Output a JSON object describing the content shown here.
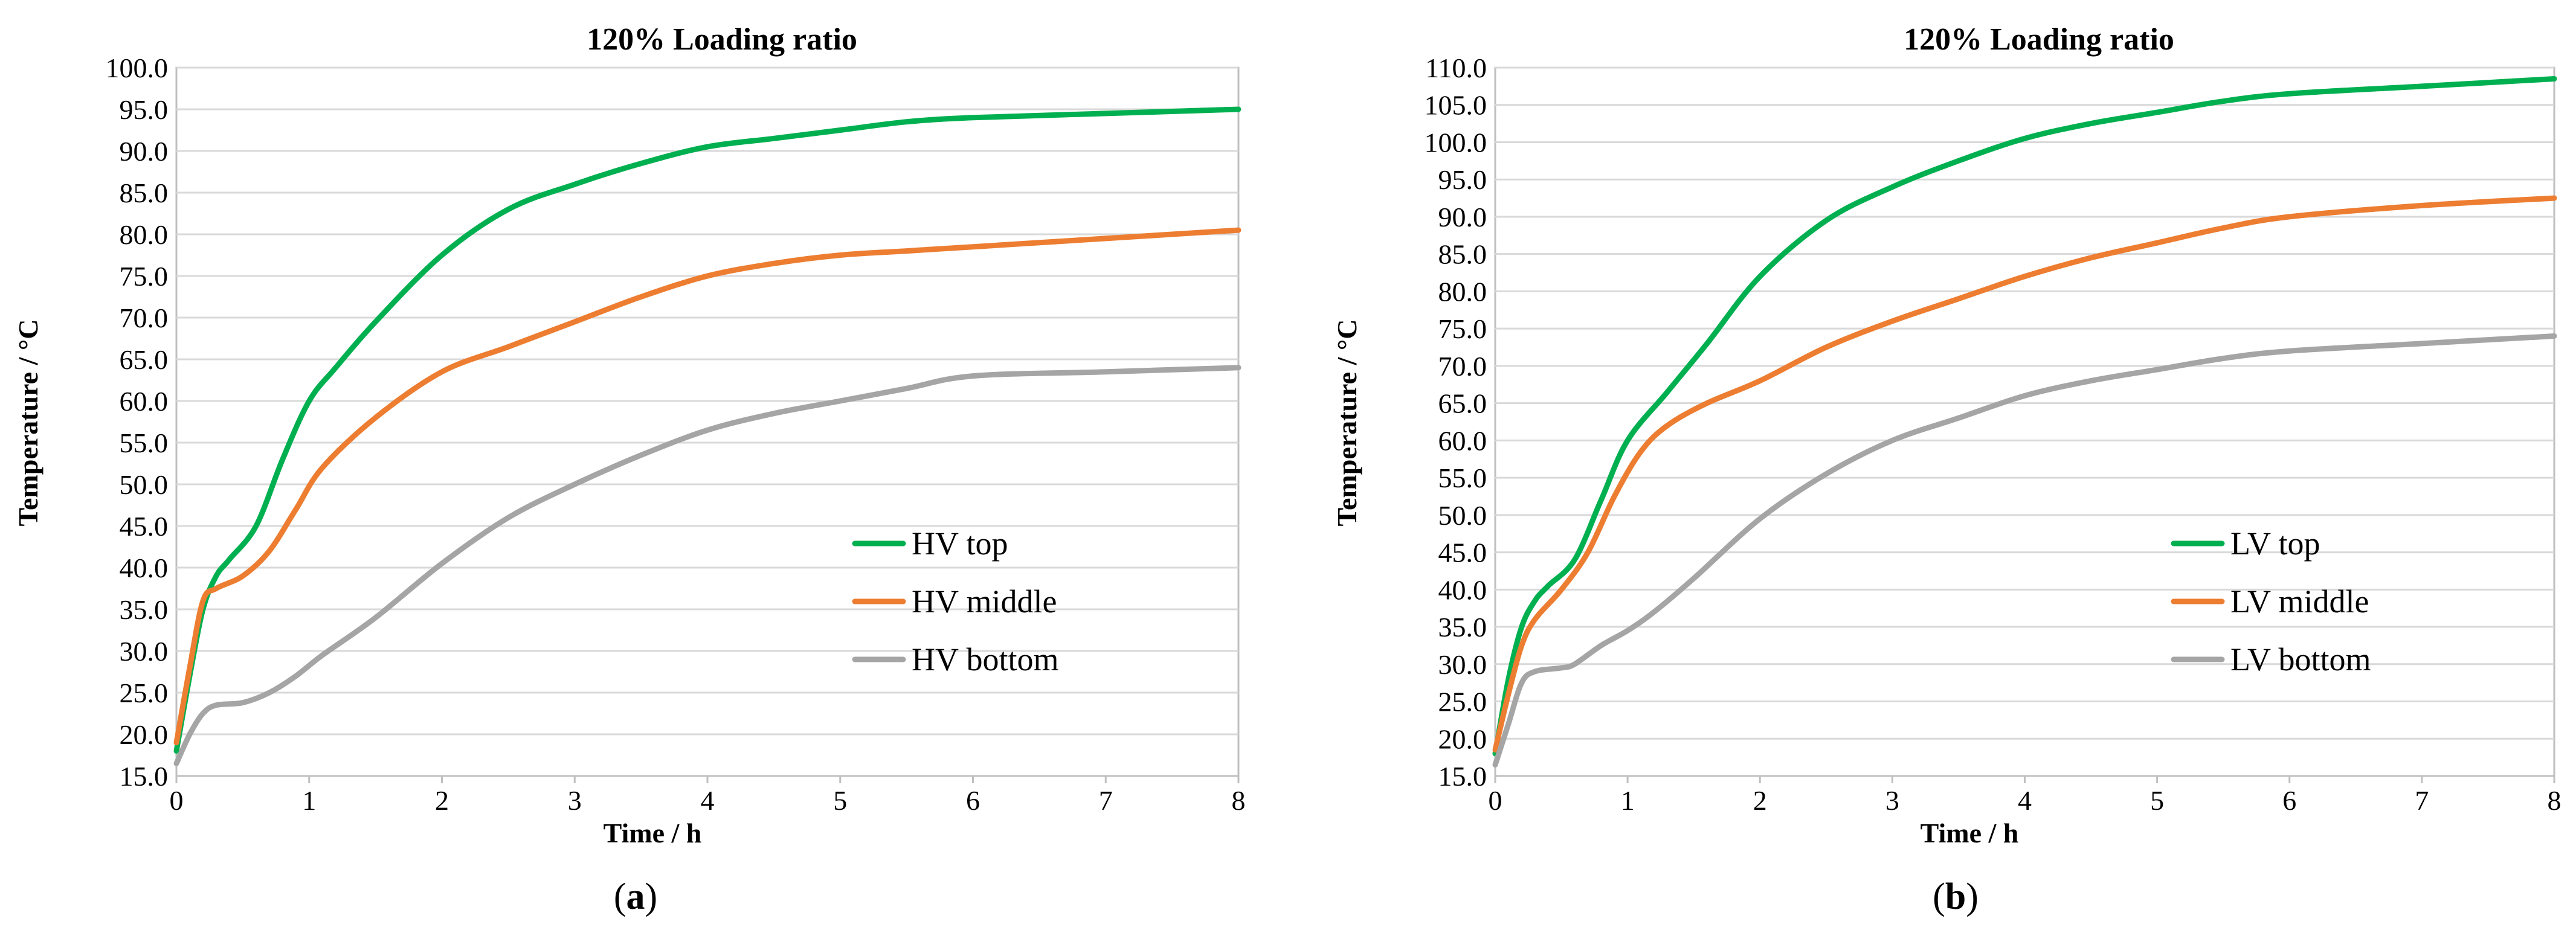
{
  "chart_data": [
    {
      "type": "line",
      "title": "120% Loading ratio",
      "xlabel": "Time / h",
      "ylabel": "Temperature / °C",
      "xlim": [
        0,
        8
      ],
      "ylim": [
        15,
        100
      ],
      "x_ticks": [
        0,
        1,
        2,
        3,
        4,
        5,
        6,
        7,
        8
      ],
      "y_ticks": [
        "15.0",
        "20.0",
        "25.0",
        "30.0",
        "35.0",
        "40.0",
        "45.0",
        "50.0",
        "55.0",
        "60.0",
        "65.0",
        "70.0",
        "75.0",
        "80.0",
        "85.0",
        "90.0",
        "95.0",
        "100.0"
      ],
      "caption": "a",
      "legend": "right-middle",
      "series": [
        {
          "name": "HV top",
          "color": "#00b050",
          "x": [
            0,
            0.1,
            0.2,
            0.3,
            0.4,
            0.6,
            0.8,
            1.0,
            1.2,
            1.5,
            2.0,
            2.5,
            3.0,
            3.5,
            4.0,
            4.5,
            5.0,
            5.5,
            6.0,
            7.0,
            8.0
          ],
          "y": [
            18,
            27,
            35,
            39,
            41,
            45,
            53,
            60,
            64,
            69.5,
            77.5,
            83,
            86,
            88.5,
            90.5,
            91.5,
            92.5,
            93.5,
            94,
            94.5,
            95
          ]
        },
        {
          "name": "HV middle",
          "color": "#ed7d31",
          "x": [
            0,
            0.1,
            0.2,
            0.3,
            0.5,
            0.7,
            0.9,
            1.1,
            1.5,
            2.0,
            2.5,
            3.0,
            3.5,
            4.0,
            4.5,
            5.0,
            5.5,
            6.0,
            7.0,
            8.0
          ],
          "y": [
            19,
            28,
            36,
            37.5,
            39,
            42,
            47,
            52,
            58,
            63.5,
            66.5,
            69.5,
            72.5,
            75,
            76.5,
            77.5,
            78,
            78.5,
            79.5,
            80.5
          ]
        },
        {
          "name": "HV bottom",
          "color": "#a5a5a5",
          "x": [
            0,
            0.1,
            0.2,
            0.3,
            0.5,
            0.7,
            0.9,
            1.1,
            1.5,
            2.0,
            2.5,
            3.0,
            3.5,
            4.0,
            4.5,
            5.0,
            5.5,
            6.0,
            7.0,
            8.0
          ],
          "y": [
            16.5,
            20,
            22.5,
            23.5,
            23.8,
            25,
            27,
            29.5,
            34,
            40.5,
            46,
            50,
            53.5,
            56.5,
            58.5,
            60,
            61.5,
            63,
            63.5,
            64
          ]
        }
      ]
    },
    {
      "type": "line",
      "title": "120% Loading ratio",
      "xlabel": "Time / h",
      "ylabel": "Temperature / °C",
      "xlim": [
        0,
        8
      ],
      "ylim": [
        15,
        110
      ],
      "x_ticks": [
        0,
        1,
        2,
        3,
        4,
        5,
        6,
        7,
        8
      ],
      "y_ticks": [
        "15.0",
        "20.0",
        "25.0",
        "30.0",
        "35.0",
        "40.0",
        "45.0",
        "50.0",
        "55.0",
        "60.0",
        "65.0",
        "70.0",
        "75.0",
        "80.0",
        "85.0",
        "90.0",
        "95.0",
        "100.0",
        "105.0",
        "110.0"
      ],
      "caption": "b",
      "legend": "right-middle",
      "series": [
        {
          "name": "LV top",
          "color": "#00b050",
          "x": [
            0,
            0.1,
            0.2,
            0.3,
            0.4,
            0.6,
            0.8,
            1.0,
            1.3,
            1.6,
            2.0,
            2.5,
            3.0,
            3.5,
            4.0,
            4.5,
            5.0,
            5.5,
            6.0,
            7.0,
            8.0
          ],
          "y": [
            18,
            28,
            35,
            38.5,
            40.5,
            44,
            52,
            60,
            66.5,
            73,
            82,
            89.5,
            94,
            97.5,
            100.5,
            102.5,
            104,
            105.5,
            106.5,
            107.5,
            108.5
          ]
        },
        {
          "name": "LV middle",
          "color": "#ed7d31",
          "x": [
            0,
            0.1,
            0.2,
            0.3,
            0.5,
            0.7,
            0.9,
            1.1,
            1.3,
            1.6,
            2.0,
            2.5,
            3.0,
            3.5,
            4.0,
            4.5,
            5.0,
            5.5,
            6.0,
            7.0,
            8.0
          ],
          "y": [
            18.5,
            26,
            32.5,
            36,
            40,
            45,
            52.5,
            58.5,
            62,
            65,
            68,
            72.5,
            76,
            79,
            82,
            84.5,
            86.5,
            88.5,
            90,
            91.5,
            92.5
          ]
        },
        {
          "name": "LV bottom",
          "color": "#a5a5a5",
          "x": [
            0,
            0.1,
            0.2,
            0.3,
            0.5,
            0.6,
            0.8,
            1.0,
            1.2,
            1.5,
            2.0,
            2.5,
            3.0,
            3.5,
            4.0,
            4.5,
            5.0,
            5.5,
            6.0,
            7.0,
            8.0
          ],
          "y": [
            16.5,
            22,
            27.5,
            29,
            29.5,
            30,
            32.5,
            34.5,
            37,
            41.5,
            49.5,
            55.5,
            60,
            63,
            66,
            68,
            69.5,
            71,
            72,
            73,
            74
          ]
        }
      ]
    }
  ]
}
